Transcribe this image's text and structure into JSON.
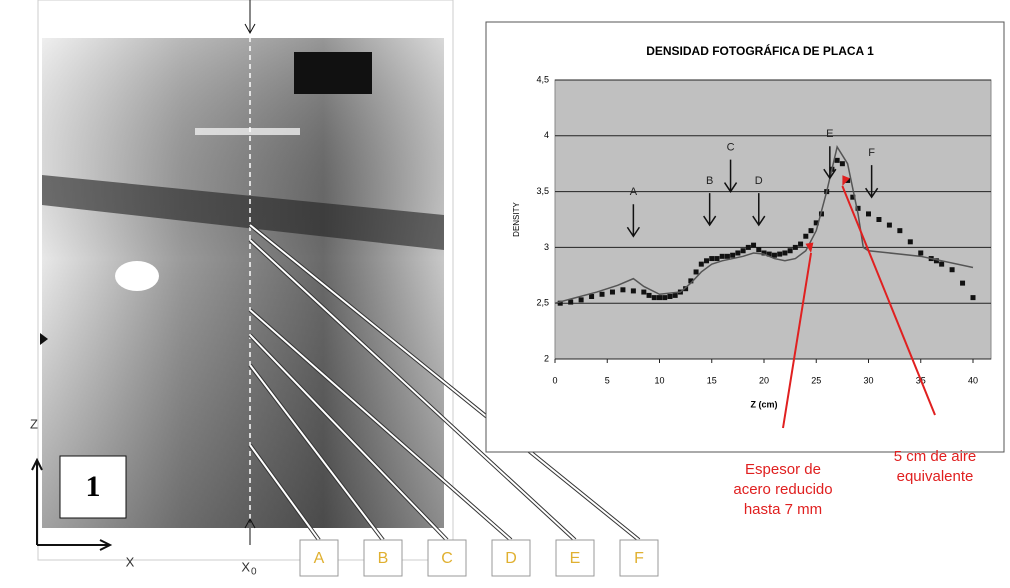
{
  "chart_data": {
    "type": "line",
    "title": "DENSIDAD FOTOGRÁFICA DE PLACA 1",
    "y_label": "DENSITY",
    "x_label": "Z (cm)",
    "xlim": [
      0,
      40
    ],
    "xticks": [
      0,
      5,
      10,
      15,
      20,
      25,
      30,
      35,
      40
    ],
    "ylim": [
      2,
      4.5
    ],
    "yticks": [
      2,
      {
        "value": 2.5,
        "label": "2,5"
      },
      3,
      {
        "value": 3.5,
        "label": "3,5"
      },
      4,
      {
        "value": 4.5,
        "label": "4,5"
      }
    ],
    "grid": true,
    "background": "#c0c0c0",
    "series": [
      {
        "mode": "markers",
        "color": "#111111",
        "x": [
          0.5,
          1.5,
          2.5,
          3.5,
          4.5,
          5.5,
          6.5,
          7.5,
          8.5,
          9,
          9.5,
          10,
          10.5,
          11,
          11.5,
          12,
          12.5,
          13,
          13.5,
          14,
          14.5,
          15,
          15.5,
          16,
          16.5,
          17,
          17.5,
          18,
          18.5,
          19,
          19.5,
          20,
          20.5,
          21,
          21.5,
          22,
          22.5,
          23,
          23.5,
          24,
          24.5,
          25,
          25.5,
          26,
          26.5,
          27,
          27.5,
          28,
          28.5,
          29,
          30,
          31,
          32,
          33,
          34,
          35,
          36,
          36.5,
          37,
          38,
          39,
          40
        ],
        "values": [
          2.5,
          2.51,
          2.53,
          2.56,
          2.58,
          2.6,
          2.62,
          2.61,
          2.6,
          2.57,
          2.55,
          2.55,
          2.55,
          2.56,
          2.57,
          2.6,
          2.63,
          2.7,
          2.78,
          2.85,
          2.88,
          2.9,
          2.9,
          2.92,
          2.92,
          2.93,
          2.95,
          2.97,
          3.0,
          3.02,
          2.98,
          2.95,
          2.94,
          2.93,
          2.94,
          2.95,
          2.97,
          3.0,
          3.03,
          3.1,
          3.15,
          3.22,
          3.3,
          3.5,
          3.7,
          3.78,
          3.75,
          3.6,
          3.45,
          3.35,
          3.3,
          3.25,
          3.2,
          3.15,
          3.05,
          2.95,
          2.9,
          2.88,
          2.85,
          2.8,
          2.68,
          2.55
        ]
      },
      {
        "mode": "line",
        "color": "#555555",
        "x": [
          0,
          2,
          4,
          6,
          7.5,
          8.5,
          10,
          12,
          13,
          14,
          15,
          16,
          18,
          19,
          20,
          21,
          22,
          23,
          24,
          25,
          26,
          27,
          28,
          29,
          29.5,
          30,
          35,
          40
        ],
        "values": [
          2.5,
          2.55,
          2.6,
          2.66,
          2.72,
          2.65,
          2.58,
          2.6,
          2.68,
          2.78,
          2.85,
          2.88,
          2.92,
          2.95,
          2.94,
          2.9,
          2.88,
          2.9,
          2.97,
          3.15,
          3.5,
          3.9,
          3.75,
          3.3,
          3.0,
          2.97,
          2.92,
          2.82
        ]
      }
    ],
    "annotations": [
      {
        "text": "A",
        "x": 7.5,
        "y": 3.1
      },
      {
        "text": "B",
        "x": 14.8,
        "y": 3.2
      },
      {
        "text": "C",
        "x": 16.8,
        "y": 3.5
      },
      {
        "text": "D",
        "x": 19.5,
        "y": 3.2
      },
      {
        "text": "E",
        "x": 26.3,
        "y": 3.62
      },
      {
        "text": "F",
        "x": 30.3,
        "y": 3.45
      }
    ],
    "callouts": [
      {
        "lines": [
          "Espesor de",
          "acero reducido",
          "hasta 7 mm"
        ],
        "x": 24.5,
        "y": 2.95,
        "color": "#e02020"
      },
      {
        "lines": [
          "5 cm de aire",
          "equivalente"
        ],
        "x": 27.5,
        "y": 3.55,
        "color": "#e02020"
      }
    ]
  },
  "figure": {
    "plate_number": "1",
    "x_axis": "X",
    "x0_label": "X",
    "x0_subscript": "0",
    "z_axis": "Z",
    "profiles": [
      "A",
      "B",
      "C",
      "D",
      "E",
      "F"
    ]
  }
}
